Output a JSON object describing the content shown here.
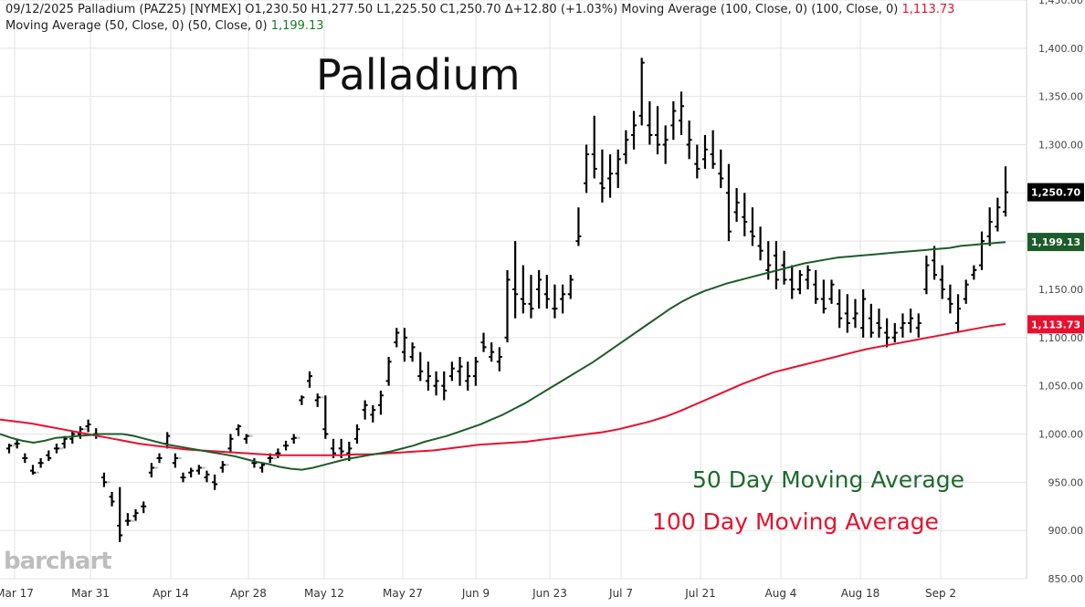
{
  "header": {
    "line1": "09/12/2025 Palladium (PAZ25) [NYMEX] O1,230.50 H1,277.50 L1,225.50 C1,250.70 Δ+12.80 (+1.03%) Moving Average (100, Close, 0)  (100, Close, 0) ",
    "line1_ma100": "1,113.73",
    "line2": "Moving Average (50, Close, 0)  (50, Close, 0) ",
    "line2_ma50": "1,199.13"
  },
  "logo": "barchart",
  "colors": {
    "price": "#000000",
    "ma50": "#1d5c2a",
    "ma100": "#e8102e",
    "grid": "#e3e3e3",
    "gap": "#bbbbbb"
  },
  "chart_data": {
    "type": "line",
    "title": "Palladium",
    "annotations": [
      "50 Day Moving Average",
      "100 Day Moving Average"
    ],
    "x_tick_labels": [
      "Mar 17",
      "Mar 31",
      "Apr 14",
      "Apr 28",
      "May 12",
      "May 27",
      "Jun 9",
      "Jun 23",
      "Jul 7",
      "Jul 21",
      "Aug 4",
      "Aug 18",
      "Sep 2"
    ],
    "y_tick_labels": [
      "850.00",
      "900.00",
      "950.00",
      "1,000.00",
      "1,050.00",
      "1,100.00",
      "1,150.00",
      "1,200.00",
      "1,250.00",
      "1,300.00",
      "1,350.00",
      "1,400.00",
      "1,450.00"
    ],
    "ylim": [
      850,
      1450
    ],
    "grid": true,
    "price_labels": [
      {
        "name": "Close",
        "value": 1250.7,
        "label": "1,250.70"
      },
      {
        "name": "MA 50",
        "value": 1199.13,
        "label": "1,199.13"
      },
      {
        "name": "MA 100",
        "value": 1113.73,
        "label": "1,113.73"
      }
    ],
    "series": [
      {
        "type": "ohlc",
        "values": [
          [
            985,
            990,
            980,
            988
          ],
          [
            990,
            995,
            985,
            990
          ],
          [
            975,
            980,
            970,
            975
          ],
          [
            962,
            968,
            958,
            960
          ],
          [
            970,
            975,
            965,
            970
          ],
          [
            978,
            983,
            972,
            975
          ],
          [
            985,
            990,
            980,
            985
          ],
          [
            990,
            998,
            985,
            995
          ],
          [
            995,
            1003,
            990,
            1000
          ],
          [
            1000,
            1008,
            995,
            1005
          ],
          [
            1008,
            1015,
            1002,
            1010
          ],
          [
            1000,
            1006,
            995,
            1000
          ],
          [
            955,
            960,
            945,
            950
          ],
          [
            935,
            940,
            925,
            930
          ],
          [
            905,
            945,
            888,
            895
          ],
          [
            910,
            918,
            905,
            910
          ],
          [
            915,
            922,
            910,
            918
          ],
          [
            925,
            930,
            918,
            925
          ],
          [
            960,
            970,
            955,
            965
          ],
          [
            975,
            980,
            970,
            975
          ],
          [
            990,
            1002,
            985,
            998
          ],
          [
            970,
            980,
            965,
            975
          ],
          [
            955,
            960,
            950,
            955
          ],
          [
            960,
            965,
            955,
            962
          ],
          [
            962,
            968,
            958,
            965
          ],
          [
            955,
            962,
            950,
            958
          ],
          [
            950,
            958,
            942,
            948
          ],
          [
            965,
            972,
            960,
            968
          ],
          [
            985,
            1000,
            980,
            995
          ],
          [
            1005,
            1010,
            998,
            1008
          ],
          [
            995,
            1000,
            990,
            998
          ],
          [
            970,
            975,
            965,
            970
          ],
          [
            965,
            970,
            960,
            968
          ],
          [
            975,
            980,
            970,
            975
          ],
          [
            980,
            985,
            975,
            980
          ],
          [
            988,
            993,
            983,
            988
          ],
          [
            995,
            1000,
            990,
            996
          ],
          [
            1035,
            1040,
            1030,
            1038
          ],
          [
            1055,
            1065,
            1048,
            1060
          ],
          [
            1035,
            1042,
            1028,
            1038
          ],
          [
            1005,
            1040,
            995,
            1000
          ],
          [
            985,
            995,
            975,
            980
          ],
          [
            985,
            995,
            975,
            982
          ],
          [
            980,
            992,
            972,
            985
          ],
          [
            995,
            1010,
            990,
            1005
          ],
          [
            1025,
            1035,
            1015,
            1030
          ],
          [
            1020,
            1030,
            1012,
            1025
          ],
          [
            1030,
            1045,
            1020,
            1040
          ],
          [
            1055,
            1080,
            1050,
            1075
          ],
          [
            1095,
            1110,
            1090,
            1105
          ],
          [
            1085,
            1110,
            1075,
            1100
          ],
          [
            1080,
            1095,
            1075,
            1090
          ],
          [
            1060,
            1085,
            1055,
            1065
          ],
          [
            1055,
            1075,
            1045,
            1060
          ],
          [
            1050,
            1065,
            1040,
            1055
          ],
          [
            1050,
            1065,
            1035,
            1045
          ],
          [
            1060,
            1075,
            1055,
            1068
          ],
          [
            1065,
            1080,
            1050,
            1070
          ],
          [
            1055,
            1075,
            1045,
            1060
          ],
          [
            1060,
            1080,
            1050,
            1075
          ],
          [
            1095,
            1105,
            1085,
            1090
          ],
          [
            1080,
            1095,
            1075,
            1085
          ],
          [
            1075,
            1090,
            1065,
            1080
          ],
          [
            1100,
            1170,
            1095,
            1160
          ],
          [
            1150,
            1200,
            1120,
            1145
          ],
          [
            1140,
            1175,
            1125,
            1135
          ],
          [
            1135,
            1165,
            1120,
            1130
          ],
          [
            1150,
            1170,
            1130,
            1160
          ],
          [
            1145,
            1165,
            1130,
            1140
          ],
          [
            1130,
            1155,
            1120,
            1130
          ],
          [
            1140,
            1155,
            1125,
            1145
          ],
          [
            1145,
            1165,
            1140,
            1160
          ],
          [
            1200,
            1235,
            1195,
            1205
          ],
          [
            1260,
            1300,
            1250,
            1290
          ],
          [
            1290,
            1330,
            1265,
            1275
          ],
          [
            1260,
            1295,
            1240,
            1255
          ],
          [
            1265,
            1290,
            1245,
            1270
          ],
          [
            1270,
            1295,
            1255,
            1285
          ],
          [
            1290,
            1315,
            1280,
            1305
          ],
          [
            1310,
            1335,
            1295,
            1320
          ],
          [
            1330,
            1390,
            1320,
            1385
          ],
          [
            1320,
            1345,
            1300,
            1310
          ],
          [
            1310,
            1340,
            1290,
            1300
          ],
          [
            1300,
            1320,
            1280,
            1305
          ],
          [
            1320,
            1345,
            1305,
            1335
          ],
          [
            1325,
            1355,
            1310,
            1340
          ],
          [
            1300,
            1325,
            1285,
            1305
          ],
          [
            1280,
            1300,
            1265,
            1275
          ],
          [
            1285,
            1310,
            1275,
            1295
          ],
          [
            1290,
            1315,
            1275,
            1280
          ],
          [
            1270,
            1295,
            1255,
            1265
          ],
          [
            1250,
            1280,
            1200,
            1210
          ],
          [
            1230,
            1255,
            1220,
            1240
          ],
          [
            1225,
            1250,
            1205,
            1220
          ],
          [
            1210,
            1235,
            1195,
            1205
          ],
          [
            1195,
            1215,
            1180,
            1190
          ],
          [
            1170,
            1200,
            1160,
            1175
          ],
          [
            1185,
            1200,
            1150,
            1160
          ],
          [
            1175,
            1190,
            1155,
            1160
          ],
          [
            1160,
            1175,
            1140,
            1150
          ],
          [
            1150,
            1170,
            1145,
            1165
          ],
          [
            1160,
            1175,
            1150,
            1170
          ],
          [
            1155,
            1170,
            1135,
            1140
          ],
          [
            1140,
            1160,
            1125,
            1130
          ],
          [
            1140,
            1160,
            1135,
            1155
          ],
          [
            1135,
            1150,
            1110,
            1120
          ],
          [
            1125,
            1145,
            1105,
            1115
          ],
          [
            1120,
            1140,
            1110,
            1125
          ],
          [
            1110,
            1150,
            1100,
            1140
          ],
          [
            1120,
            1135,
            1100,
            1105
          ],
          [
            1115,
            1130,
            1100,
            1110
          ],
          [
            1105,
            1120,
            1090,
            1100
          ],
          [
            1100,
            1115,
            1095,
            1105
          ],
          [
            1110,
            1125,
            1100,
            1115
          ],
          [
            1115,
            1130,
            1105,
            1120
          ],
          [
            1110,
            1125,
            1100,
            1115
          ],
          [
            1150,
            1185,
            1145,
            1175
          ],
          [
            1180,
            1195,
            1160,
            1165
          ],
          [
            1160,
            1175,
            1140,
            1150
          ],
          [
            1140,
            1155,
            1125,
            1135
          ],
          [
            1115,
            1145,
            1105,
            1130
          ],
          [
            1140,
            1160,
            1135,
            1155
          ],
          [
            1165,
            1175,
            1160,
            1170
          ],
          [
            1175,
            1210,
            1170,
            1200
          ],
          [
            1205,
            1235,
            1195,
            1220
          ],
          [
            1215,
            1245,
            1210,
            1235
          ],
          [
            1230.5,
            1277.5,
            1225.5,
            1250.7
          ]
        ]
      },
      {
        "name": "MA 50",
        "values": [
          1000,
          996,
          993,
          991,
          993,
          996,
          997,
          998,
          999,
          1000,
          1000,
          1000,
          998,
          995,
          992,
          989,
          987,
          985,
          983,
          981,
          979,
          977,
          974,
          971,
          969,
          966,
          964,
          963,
          965,
          968,
          971,
          974,
          976,
          978,
          980,
          982,
          985,
          988,
          992,
          995,
          998,
          1002,
          1006,
          1010,
          1015,
          1020,
          1026,
          1032,
          1039,
          1046,
          1053,
          1060,
          1067,
          1074,
          1082,
          1090,
          1098,
          1106,
          1114,
          1122,
          1130,
          1137,
          1143,
          1148,
          1152,
          1156,
          1159,
          1162,
          1165,
          1168,
          1171,
          1174,
          1177,
          1179,
          1181,
          1183,
          1184,
          1185,
          1186,
          1187,
          1188,
          1189,
          1190,
          1191,
          1192,
          1193,
          1195,
          1196,
          1197,
          1198,
          1199
        ]
      },
      {
        "name": "MA 100",
        "values": [
          1015,
          1013,
          1011,
          1008,
          1005,
          1002,
          999,
          996,
          993,
          990,
          988,
          986,
          984,
          983,
          982,
          981,
          980,
          979,
          978,
          978,
          978,
          978,
          978,
          979,
          979,
          980,
          981,
          982,
          983,
          985,
          987,
          989,
          990,
          991,
          992,
          994,
          996,
          998,
          1000,
          1002,
          1005,
          1009,
          1013,
          1018,
          1024,
          1031,
          1038,
          1045,
          1052,
          1058,
          1064,
          1068,
          1072,
          1076,
          1080,
          1084,
          1088,
          1091,
          1094,
          1097,
          1100,
          1103,
          1106,
          1109,
          1112,
          1114
        ]
      }
    ]
  }
}
